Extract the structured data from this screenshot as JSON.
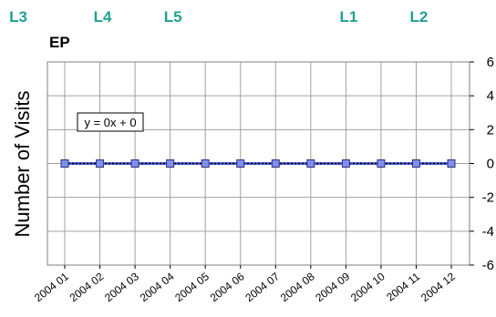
{
  "header_labels": [
    {
      "text": "L3",
      "at": "2003 12"
    },
    {
      "text": "L4",
      "at": "2004 02"
    },
    {
      "text": "L5",
      "at": "2004 04"
    },
    {
      "text": "L1",
      "at": "2004 09"
    },
    {
      "text": "L2",
      "at": "2004 11"
    }
  ],
  "colors": {
    "header": "#20A090",
    "series_line": "#5060D8",
    "marker_fill": "#8090F0",
    "marker_stroke": "#303080",
    "trend_line": "#000000",
    "grid": "#A0A0A0"
  },
  "chart_data": {
    "type": "line",
    "title": "EP",
    "ylabel": "Number of Visits",
    "xlabel": "",
    "categories": [
      "2004 01",
      "2004 02",
      "2004 03",
      "2004 04",
      "2004 05",
      "2004 06",
      "2004 07",
      "2004 08",
      "2004 09",
      "2004 10",
      "2004 11",
      "2004 12"
    ],
    "series": [
      {
        "values": [
          0,
          0,
          0,
          0,
          0,
          0,
          0,
          0,
          0,
          0,
          0,
          0
        ]
      }
    ],
    "trendline": {
      "equation": "y = 0x + 0",
      "slope": 0,
      "intercept": 0,
      "style": "dotted"
    },
    "ylim": [
      -6,
      6
    ],
    "yticks": [
      -6,
      -4,
      -2,
      0,
      2,
      4,
      6
    ],
    "y_axis_side": "right",
    "grid": true
  }
}
